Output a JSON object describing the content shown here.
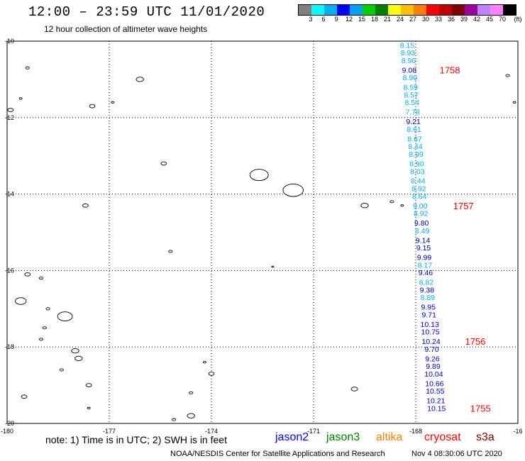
{
  "header": {
    "title": "12:00 – 23:59 UTC 11/01/2020",
    "subtitle": "12 hour collection of altimeter wave heights"
  },
  "colorbar": {
    "unit": "(ft)",
    "colors": [
      "#808080",
      "#00ffff",
      "#00b0f0",
      "#0000ff",
      "#00a0ff",
      "#00d000",
      "#008000",
      "#ffff00",
      "#ffc000",
      "#ff8000",
      "#ff0000",
      "#c00000",
      "#800000",
      "#a000a0",
      "#c080ff",
      "#ff80ff",
      "#000000"
    ],
    "labels": [
      "3",
      "6",
      "9",
      "12",
      "15",
      "18",
      "21",
      "24",
      "27",
      "30",
      "33",
      "36",
      "39",
      "42",
      "45",
      "70"
    ]
  },
  "map": {
    "lon_ticks": [
      "-180",
      "-177",
      "-174",
      "-171",
      "-168",
      "-16"
    ],
    "lat_ticks": [
      "-10",
      "-12",
      "-14",
      "-16",
      "-18",
      "-20"
    ],
    "lon_range": [
      -180,
      -165
    ],
    "lat_range": [
      -20,
      -10
    ],
    "track": [
      {
        "lat": -10.1,
        "lon": -168.25,
        "value": "8.15",
        "color": "#00b0f0"
      },
      {
        "lat": -10.3,
        "lon": -168.23,
        "value": "8.93",
        "color": "#00b0f0"
      },
      {
        "lat": -10.5,
        "lon": -168.21,
        "value": "8.96",
        "color": "#00b0f0"
      },
      {
        "lat": -10.75,
        "lon": -168.19,
        "value": "9.08",
        "color": "#0000c0"
      },
      {
        "lat": -10.95,
        "lon": -168.17,
        "value": "8.90",
        "color": "#00b0f0"
      },
      {
        "lat": -11.2,
        "lon": -168.15,
        "value": "8.59",
        "color": "#00b0f0"
      },
      {
        "lat": -11.4,
        "lon": -168.13,
        "value": "8.57",
        "color": "#00b0f0"
      },
      {
        "lat": -11.6,
        "lon": -168.11,
        "value": "8.54",
        "color": "#00b0f0"
      },
      {
        "lat": -11.85,
        "lon": -168.09,
        "value": "7.78",
        "color": "#00b0f0"
      },
      {
        "lat": -12.1,
        "lon": -168.07,
        "value": "9.21",
        "color": "#0000c0"
      },
      {
        "lat": -12.3,
        "lon": -168.05,
        "value": "8.61",
        "color": "#00b0f0"
      },
      {
        "lat": -12.55,
        "lon": -168.03,
        "value": "8.67",
        "color": "#00b0f0"
      },
      {
        "lat": -12.75,
        "lon": -168.01,
        "value": "8.44",
        "color": "#00b0f0"
      },
      {
        "lat": -12.95,
        "lon": -167.99,
        "value": "8.99",
        "color": "#00b0f0"
      },
      {
        "lat": -13.2,
        "lon": -167.97,
        "value": "8.90",
        "color": "#00b0f0"
      },
      {
        "lat": -13.4,
        "lon": -167.95,
        "value": "8.03",
        "color": "#00b0f0"
      },
      {
        "lat": -13.65,
        "lon": -167.93,
        "value": "8.44",
        "color": "#00b0f0"
      },
      {
        "lat": -13.85,
        "lon": -167.91,
        "value": "8.92",
        "color": "#00b0f0"
      },
      {
        "lat": -14.05,
        "lon": -167.89,
        "value": "8.64",
        "color": "#00b0f0"
      },
      {
        "lat": -14.3,
        "lon": -167.87,
        "value": "9.00",
        "color": "#00b0f0"
      },
      {
        "lat": -14.5,
        "lon": -167.85,
        "value": "8.92",
        "color": "#00b0f0"
      },
      {
        "lat": -14.75,
        "lon": -167.83,
        "value": "9.80",
        "color": "#0000c0"
      },
      {
        "lat": -14.95,
        "lon": -167.81,
        "value": "8.49",
        "color": "#00b0f0"
      },
      {
        "lat": -15.2,
        "lon": -167.79,
        "value": "9.14",
        "color": "#0000c0"
      },
      {
        "lat": -15.4,
        "lon": -167.77,
        "value": "9.15",
        "color": "#0000c0"
      },
      {
        "lat": -15.65,
        "lon": -167.75,
        "value": "9.99",
        "color": "#0000c0"
      },
      {
        "lat": -15.85,
        "lon": -167.73,
        "value": "8.17",
        "color": "#00b0f0"
      },
      {
        "lat": -16.05,
        "lon": -167.71,
        "value": "9.46",
        "color": "#0000c0"
      },
      {
        "lat": -16.3,
        "lon": -167.69,
        "value": "8.82",
        "color": "#00b0f0"
      },
      {
        "lat": -16.5,
        "lon": -167.67,
        "value": "9.38",
        "color": "#0000c0"
      },
      {
        "lat": -16.7,
        "lon": -167.65,
        "value": "8.89",
        "color": "#00b0f0"
      },
      {
        "lat": -16.95,
        "lon": -167.63,
        "value": "9.95",
        "color": "#0000c0"
      },
      {
        "lat": -17.15,
        "lon": -167.61,
        "value": "9.71",
        "color": "#0000c0"
      },
      {
        "lat": -17.4,
        "lon": -167.59,
        "value": "10.13",
        "color": "#0000c0"
      },
      {
        "lat": -17.6,
        "lon": -167.57,
        "value": "10.75",
        "color": "#0000c0"
      },
      {
        "lat": -17.85,
        "lon": -167.55,
        "value": "10.24",
        "color": "#0000c0"
      },
      {
        "lat": -18.05,
        "lon": -167.53,
        "value": "9.70",
        "color": "#0000c0"
      },
      {
        "lat": -18.3,
        "lon": -167.51,
        "value": "9.26",
        "color": "#0000c0"
      },
      {
        "lat": -18.5,
        "lon": -167.49,
        "value": "9.89",
        "color": "#0000c0"
      },
      {
        "lat": -18.7,
        "lon": -167.47,
        "value": "10.04",
        "color": "#0000c0"
      },
      {
        "lat": -18.95,
        "lon": -167.45,
        "value": "10.66",
        "color": "#0000c0"
      },
      {
        "lat": -19.15,
        "lon": -167.43,
        "value": "10.55",
        "color": "#0000c0"
      },
      {
        "lat": -19.4,
        "lon": -167.41,
        "value": "10.21",
        "color": "#0000c0"
      },
      {
        "lat": -19.6,
        "lon": -167.39,
        "value": "10.15",
        "color": "#0000c0"
      }
    ],
    "time_labels": [
      {
        "lat": -10.75,
        "lon": -167.3,
        "text": "1758"
      },
      {
        "lat": -14.3,
        "lon": -166.9,
        "text": "1757"
      },
      {
        "lat": -17.85,
        "lon": -166.55,
        "text": "1756"
      },
      {
        "lat": -19.6,
        "lon": -166.4,
        "text": "1755"
      }
    ],
    "islands": [
      {
        "lat": -10.7,
        "lon": -179.4,
        "size": 2
      },
      {
        "lat": -11.0,
        "lon": -176.1,
        "size": 4
      },
      {
        "lat": -11.5,
        "lon": -179.6,
        "size": 1.5
      },
      {
        "lat": -11.8,
        "lon": -179.9,
        "size": 3
      },
      {
        "lat": -11.7,
        "lon": -177.5,
        "size": 3
      },
      {
        "lat": -11.6,
        "lon": -176.9,
        "size": 1.5
      },
      {
        "lat": -13.2,
        "lon": -175.4,
        "size": 3
      },
      {
        "lat": -13.5,
        "lon": -172.6,
        "size": 10
      },
      {
        "lat": -13.9,
        "lon": -171.6,
        "size": 11
      },
      {
        "lat": -14.3,
        "lon": -177.7,
        "size": 3
      },
      {
        "lat": -14.3,
        "lon": -169.5,
        "size": 4
      },
      {
        "lat": -14.2,
        "lon": -168.7,
        "size": 2
      },
      {
        "lat": -14.3,
        "lon": -168.4,
        "size": 1.5
      },
      {
        "lat": -15.5,
        "lon": -175.2,
        "size": 2
      },
      {
        "lat": -15.9,
        "lon": -172.2,
        "size": 1.2
      },
      {
        "lat": -10.9,
        "lon": -165.3,
        "size": 2
      },
      {
        "lat": -11.6,
        "lon": -165.1,
        "size": 1.5
      },
      {
        "lat": -16.1,
        "lon": -179.4,
        "size": 3
      },
      {
        "lat": -16.2,
        "lon": -179.0,
        "size": 2
      },
      {
        "lat": -16.8,
        "lon": -179.6,
        "size": 6
      },
      {
        "lat": -17.2,
        "lon": -178.3,
        "size": 8
      },
      {
        "lat": -17.0,
        "lon": -178.8,
        "size": 2
      },
      {
        "lat": -17.5,
        "lon": -178.9,
        "size": 2
      },
      {
        "lat": -17.8,
        "lon": -179.0,
        "size": 2
      },
      {
        "lat": -18.1,
        "lon": -178.0,
        "size": 4
      },
      {
        "lat": -18.3,
        "lon": -177.9,
        "size": 4
      },
      {
        "lat": -18.6,
        "lon": -178.4,
        "size": 2
      },
      {
        "lat": -19.0,
        "lon": -177.6,
        "size": 3
      },
      {
        "lat": -19.3,
        "lon": -179.5,
        "size": 3
      },
      {
        "lat": -19.6,
        "lon": -177.6,
        "size": 1.5
      },
      {
        "lat": -18.4,
        "lon": -174.2,
        "size": 1.5
      },
      {
        "lat": -18.7,
        "lon": -174.0,
        "size": 3
      },
      {
        "lat": -19.2,
        "lon": -174.6,
        "size": 2
      },
      {
        "lat": -19.8,
        "lon": -174.6,
        "size": 4
      },
      {
        "lat": -19.9,
        "lon": -175.1,
        "size": 2
      },
      {
        "lat": -19.1,
        "lon": -169.8,
        "size": 3.5
      }
    ]
  },
  "footer": {
    "note": "note:  1) Time is in UTC;  2) SWH is in feet",
    "satellites": [
      {
        "name": "jason2",
        "color": "#0000ff"
      },
      {
        "name": "jason3",
        "color": "#008000"
      },
      {
        "name": "altika",
        "color": "#ff8000"
      },
      {
        "name": "cryosat",
        "color": "#ff0000"
      },
      {
        "name": "s3a",
        "color": "#800000"
      }
    ],
    "credit": "NOAA/NESDIS Center for Satellite Applications and Research",
    "timestamp": "Nov  4 08:30:06 UTC 2020"
  }
}
